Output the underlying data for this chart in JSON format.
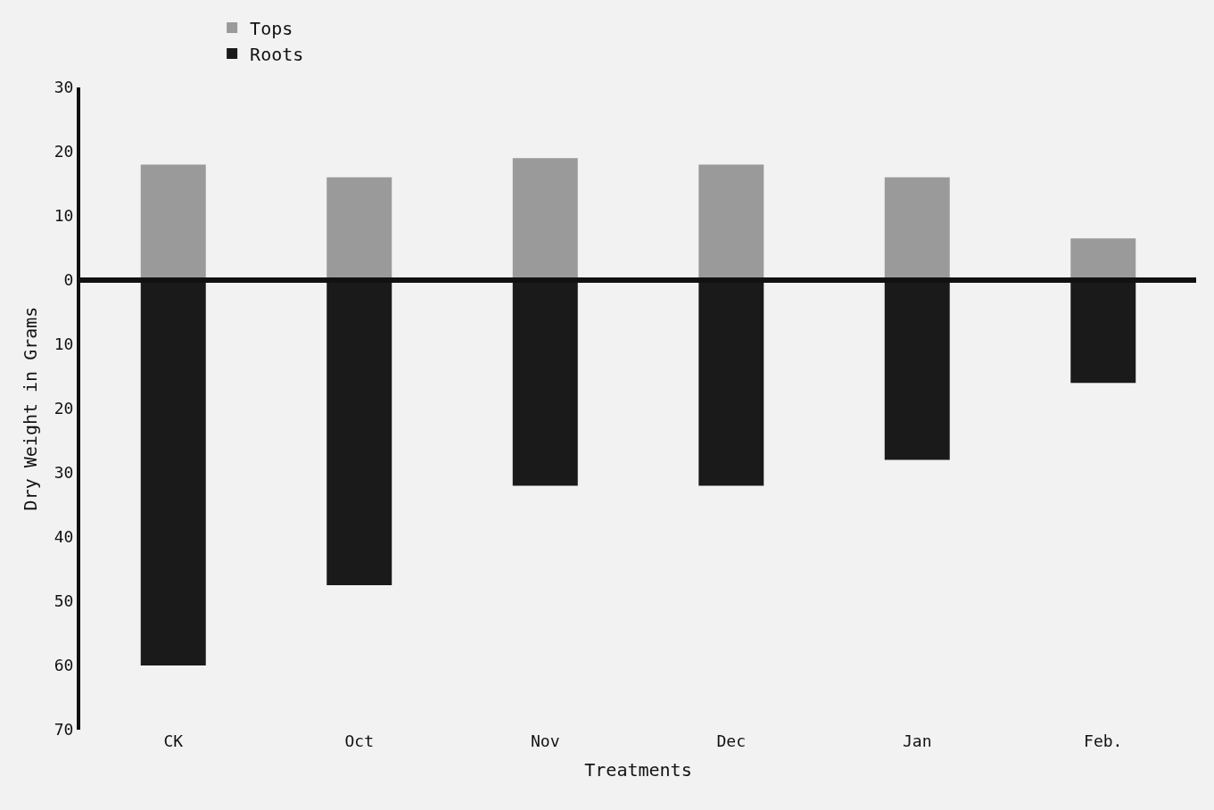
{
  "chart_data": {
    "type": "bar",
    "stacked": true,
    "xlabel": "Treatments",
    "ylabel": "Dry Weight in Grams",
    "categories": [
      "CK",
      "Oct",
      "Nov",
      "Dec",
      "Jan",
      "Feb."
    ],
    "series": [
      {
        "name": "Tops",
        "color": "#9a9a9a",
        "values": [
          18,
          16,
          19,
          18,
          16,
          6.5
        ]
      },
      {
        "name": "Roots",
        "color": "#1a1a1a",
        "values": [
          -60,
          -47.5,
          -32,
          -32,
          -28,
          -16
        ]
      }
    ],
    "ylim": [
      -70,
      30
    ],
    "yticks": [
      {
        "value": -70,
        "label": "70"
      },
      {
        "value": -60,
        "label": "60"
      },
      {
        "value": -50,
        "label": "50"
      },
      {
        "value": -40,
        "label": "40"
      },
      {
        "value": -30,
        "label": "30"
      },
      {
        "value": -20,
        "label": "20"
      },
      {
        "value": -10,
        "label": "10"
      },
      0,
      10,
      20,
      30
    ],
    "ref_lines": [
      {
        "axis": "y",
        "value": 0,
        "color": "#111111"
      }
    ],
    "grid": false,
    "legend": "top left"
  }
}
